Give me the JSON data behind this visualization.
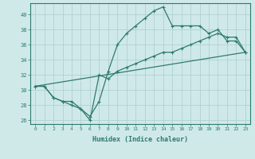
{
  "xlabel": "Humidex (Indice chaleur)",
  "xlim": [
    -0.5,
    23.5
  ],
  "ylim": [
    25.5,
    41.5
  ],
  "xticks": [
    0,
    1,
    2,
    3,
    4,
    5,
    6,
    7,
    8,
    9,
    10,
    11,
    12,
    13,
    14,
    15,
    16,
    17,
    18,
    19,
    20,
    21,
    22,
    23
  ],
  "yticks": [
    26,
    28,
    30,
    32,
    34,
    36,
    38,
    40
  ],
  "background_color": "#cfe9e9",
  "grid_color": "#b0d0d0",
  "line_color": "#2e7b6e",
  "line1_x": [
    0,
    1,
    2,
    3,
    4,
    5,
    6,
    7,
    8,
    9,
    10,
    11,
    12,
    13,
    14,
    15,
    16,
    17,
    18,
    19,
    20,
    21,
    22,
    23
  ],
  "line1_y": [
    30.5,
    30.5,
    29.0,
    28.5,
    28.0,
    27.5,
    26.5,
    28.5,
    32.5,
    36.0,
    37.5,
    38.5,
    39.5,
    40.5,
    41.0,
    38.5,
    38.5,
    38.5,
    38.5,
    37.5,
    38.0,
    36.5,
    36.5,
    35.0
  ],
  "line2_x": [
    0,
    1,
    2,
    3,
    4,
    5,
    6,
    7,
    8,
    9,
    10,
    11,
    12,
    13,
    14,
    15,
    16,
    17,
    18,
    19,
    20,
    21,
    22,
    23
  ],
  "line2_y": [
    30.5,
    30.5,
    29.0,
    28.5,
    28.5,
    27.5,
    26.0,
    32.0,
    31.5,
    32.5,
    33.0,
    33.5,
    34.0,
    34.5,
    35.0,
    35.0,
    35.5,
    36.0,
    36.5,
    37.0,
    37.5,
    37.0,
    37.0,
    35.0
  ],
  "line3_x": [
    0,
    23
  ],
  "line3_y": [
    30.5,
    35.0
  ]
}
